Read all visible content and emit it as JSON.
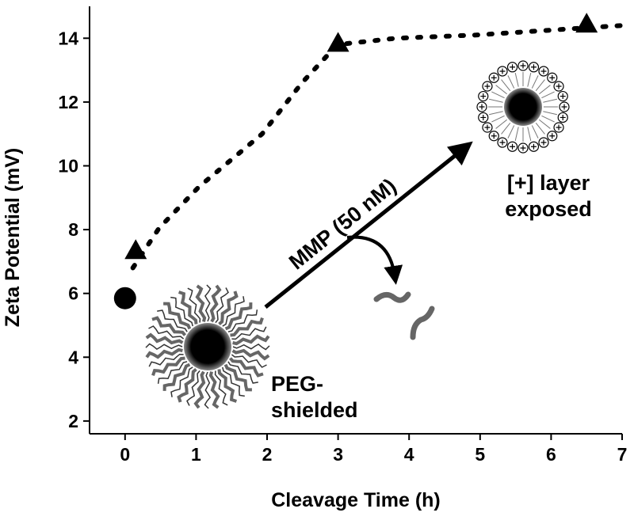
{
  "chart_data": {
    "type": "scatter",
    "x_label": "Cleavage Time (h)",
    "y_label": "Zeta Potential (mV)",
    "xlim": [
      -0.5,
      7
    ],
    "ylim": [
      1.6,
      15
    ],
    "xticks": [
      0,
      1,
      2,
      3,
      4,
      5,
      6,
      7
    ],
    "yticks": [
      2,
      4,
      6,
      8,
      10,
      12,
      14
    ],
    "series": [
      {
        "marker": "circle",
        "color": "#000000",
        "x": [
          0
        ],
        "values": [
          5.85
        ]
      },
      {
        "marker": "triangle",
        "color": "#000000",
        "x": [
          0.15,
          3,
          6.5
        ],
        "values": [
          7.35,
          13.85,
          14.45
        ]
      },
      {
        "marker": "dotted-line",
        "color": "#000000",
        "x": [
          0.11,
          0.48,
          1.04,
          1.93,
          2.49,
          2.99,
          3.82,
          4.94,
          7
        ],
        "values": [
          6.8,
          8.05,
          9.34,
          11.0,
          12.6,
          13.8,
          14.0,
          14.1,
          14.4
        ]
      }
    ],
    "annotations": [
      [
        "MMP (50 nM)"
      ],
      [
        "[+] layer",
        "exposed"
      ],
      [
        "PEG-",
        "shielded"
      ]
    ]
  }
}
